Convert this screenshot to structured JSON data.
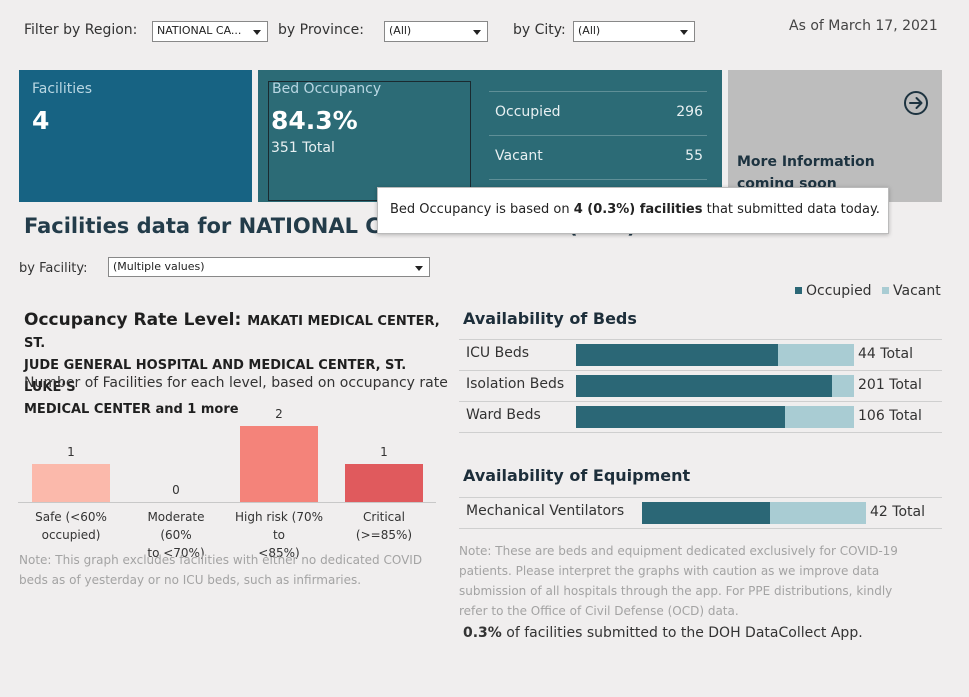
{
  "filters": {
    "region_label": "Filter by Region:",
    "region_value": "NATIONAL CA...",
    "province_label": "by Province:",
    "province_value": "(All)",
    "city_label": "by City:",
    "city_value": "(All)",
    "as_of": "As of March 17, 2021"
  },
  "kpis": {
    "facilities": {
      "label": "Facilities",
      "value": "4"
    },
    "bed_occupancy": {
      "label": "Bed Occupancy",
      "percent": "84.3%",
      "total": "351 Total",
      "occupied_label": "Occupied",
      "occupied_value": "296",
      "vacant_label": "Vacant",
      "vacant_value": "55"
    },
    "more_info": {
      "line1": "More Information",
      "line2": "coming soon",
      "icon": "arrow-circle-right-icon"
    }
  },
  "tooltip": {
    "prefix": "Bed Occupancy is based on ",
    "bold": "4 (0.3%) facilities",
    "suffix": " that submitted data today."
  },
  "section": {
    "title": "Facilities data for NATIONAL CAPITAL REGION (NCR)",
    "facility_label": "by Facility:",
    "facility_value": "(Multiple values)"
  },
  "legend": {
    "occupied": "Occupied",
    "vacant": "Vacant",
    "occupied_color": "#2b6776",
    "vacant_color": "#a9ccd3"
  },
  "occupancy": {
    "title": "Occupancy Rate Level:",
    "names_l1": "MAKATI MEDICAL CENTER, ST.",
    "names_l2": "JUDE GENERAL HOSPITAL AND MEDICAL CENTER, ST. LUKE’S",
    "names_l3": "MEDICAL CENTER and 1 more",
    "subtitle": "Number of Facilities for each level, based on occupancy rate",
    "note_l1": "Note: This graph excludes facilities with either no dedicated COVID",
    "note_l2": "beds as of yesterday or no ICU beds, such as infirmaries."
  },
  "chart_data": {
    "type": "bar",
    "categories": [
      "Safe (<60% occupied)",
      "Moderate (60% to <70%)",
      "High risk (70% to <85%)",
      "Critical (>=85%)"
    ],
    "values": [
      1,
      0,
      2,
      1
    ],
    "labels": [
      "1",
      "0",
      "2",
      "1"
    ],
    "colors": [
      "#fbb9ab",
      "#f5a698",
      "#f4837a",
      "#e05a5d"
    ],
    "cat_lines": [
      [
        "Safe (<60%",
        "occupied)"
      ],
      [
        "Moderate (60%",
        "to <70%)"
      ],
      [
        "High risk (70% to",
        "<85%)"
      ],
      [
        "Critical (>=85%)",
        ""
      ]
    ],
    "ylim": [
      0,
      2
    ]
  },
  "beds": {
    "title": "Availability of Beds",
    "rows": [
      {
        "label": "ICU Beds",
        "total": 44,
        "total_label": "44 Total",
        "occupied_fraction": 0.725
      },
      {
        "label": "Isolation Beds",
        "total": 201,
        "total_label": "201 Total",
        "occupied_fraction": 0.92
      },
      {
        "label": "Ward Beds",
        "total": 106,
        "total_label": "106 Total",
        "occupied_fraction": 0.75
      }
    ]
  },
  "equipment": {
    "title": "Availability of Equipment",
    "rows": [
      {
        "label": "Mechanical Ventilators",
        "total": 42,
        "total_label": "42 Total",
        "occupied_fraction": 0.57
      }
    ]
  },
  "notes": {
    "l1": "Note: These are beds and equipment dedicated exclusively for COVID-19",
    "l2": "patients. Please interpret the graphs with caution as we improve data",
    "l3": "submission of all hospitals through the app. For PPE distributions, kindly",
    "l4": "refer to the Office of Civil Defense (OCD) data.",
    "submit_bold": "0.3%",
    "submit_rest": " of facilities submitted to the DOH DataCollect App."
  }
}
